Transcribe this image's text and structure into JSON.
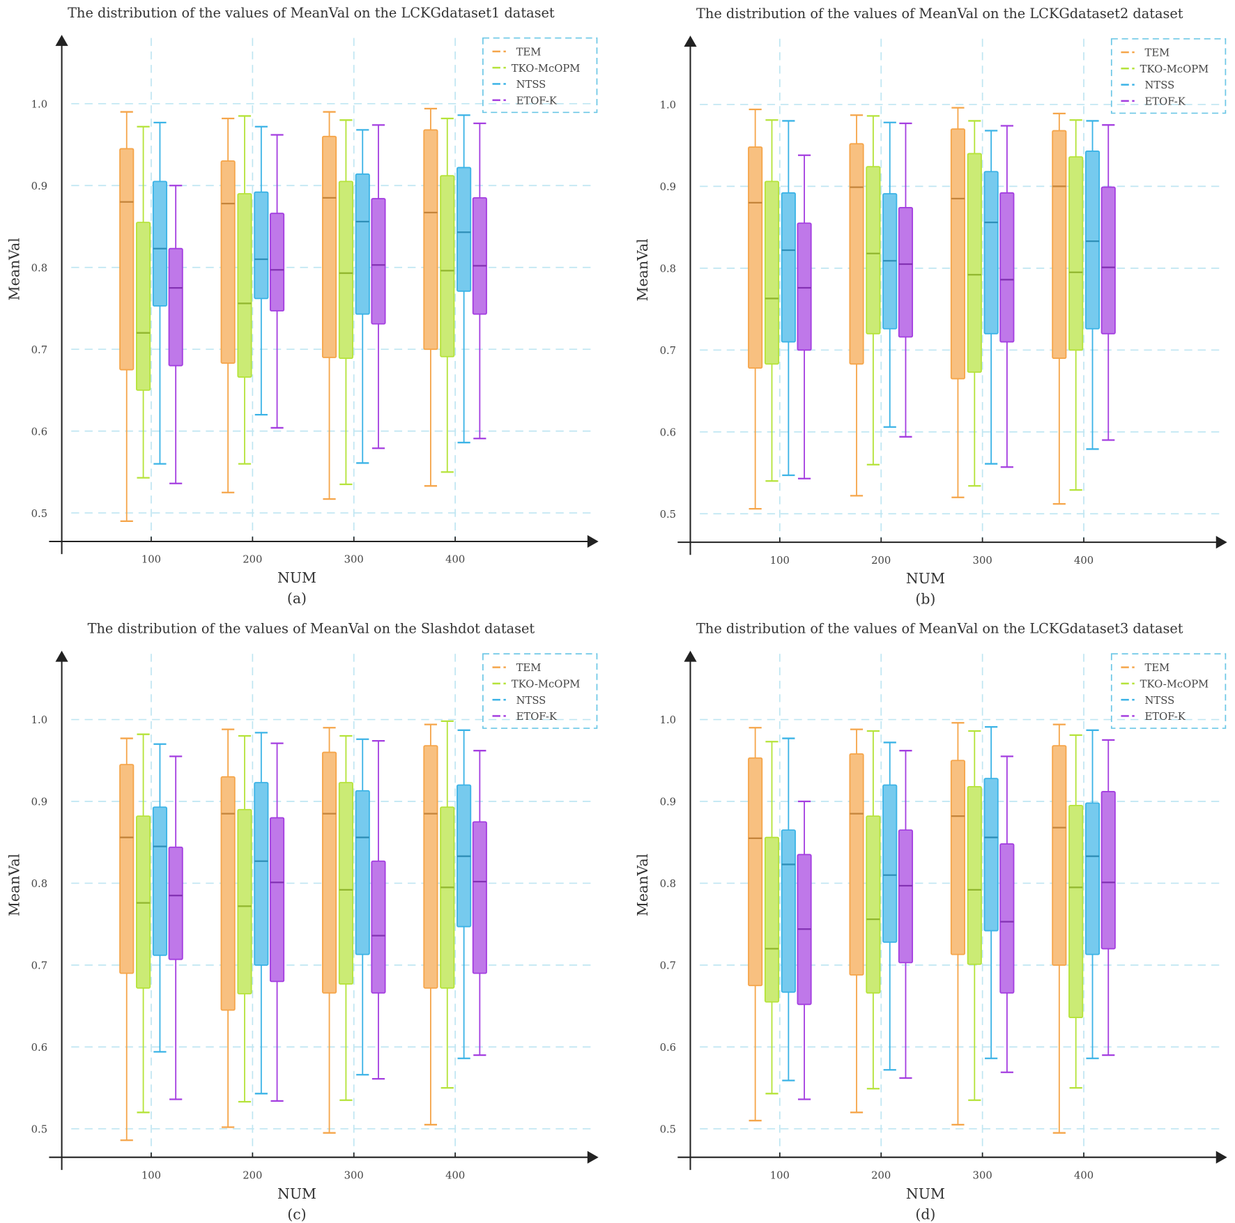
{
  "colors": {
    "TEM": "#f5a54a",
    "TKO-McOPM": "#b5e33a",
    "NTSS": "#3bb3e6",
    "ETOF-K": "#a43ee0",
    "grid": "#bfe6f2",
    "legend_border": "#6cc7e6"
  },
  "chart_data": [
    {
      "type": "box",
      "title": "The distribution of the values of MeanVal on the LCKGdataset1 dataset",
      "xlabel": "NUM",
      "ylabel": "MeanVal",
      "caption": "(a)",
      "categories": [
        "100",
        "200",
        "300",
        "400"
      ],
      "yticks": [
        "0.5",
        "0.6",
        "0.7",
        "0.8",
        "0.9",
        "1.0"
      ],
      "ylim": [
        0.465,
        1.05
      ],
      "grid": true,
      "legend_position": "top-right",
      "series": [
        {
          "name": "TEM",
          "boxes": [
            [
              0.49,
              0.675,
              0.88,
              0.945,
              0.99
            ],
            [
              0.525,
              0.683,
              0.878,
              0.93,
              0.982
            ],
            [
              0.517,
              0.69,
              0.885,
              0.96,
              0.99
            ],
            [
              0.533,
              0.7,
              0.867,
              0.968,
              0.994
            ]
          ]
        },
        {
          "name": "TKO-McOPM",
          "boxes": [
            [
              0.543,
              0.65,
              0.72,
              0.855,
              0.972
            ],
            [
              0.56,
              0.666,
              0.756,
              0.89,
              0.985
            ],
            [
              0.535,
              0.689,
              0.793,
              0.905,
              0.98
            ],
            [
              0.55,
              0.691,
              0.796,
              0.912,
              0.982
            ]
          ]
        },
        {
          "name": "NTSS",
          "boxes": [
            [
              0.56,
              0.753,
              0.823,
              0.905,
              0.977
            ],
            [
              0.62,
              0.762,
              0.81,
              0.892,
              0.972
            ],
            [
              0.561,
              0.743,
              0.856,
              0.914,
              0.968
            ],
            [
              0.586,
              0.771,
              0.843,
              0.922,
              0.986
            ]
          ]
        },
        {
          "name": "ETOF-K",
          "boxes": [
            [
              0.536,
              0.68,
              0.775,
              0.823,
              0.9
            ],
            [
              0.604,
              0.747,
              0.797,
              0.866,
              0.962
            ],
            [
              0.579,
              0.731,
              0.803,
              0.884,
              0.974
            ],
            [
              0.591,
              0.743,
              0.802,
              0.885,
              0.976
            ]
          ]
        }
      ]
    },
    {
      "type": "box",
      "title": "The distribution of the values of MeanVal on the LCKGdataset2 dataset",
      "xlabel": "NUM",
      "ylabel": "MeanVal",
      "caption": "(b)",
      "categories": [
        "100",
        "200",
        "300",
        "400"
      ],
      "yticks": [
        "0.5",
        "0.6",
        "0.7",
        "0.8",
        "0.9",
        "1.0"
      ],
      "ylim": [
        0.465,
        1.05
      ],
      "grid": true,
      "legend_position": "top-right",
      "series": [
        {
          "name": "TEM",
          "boxes": [
            [
              0.506,
              0.678,
              0.88,
              0.948,
              0.994
            ],
            [
              0.522,
              0.683,
              0.899,
              0.952,
              0.987
            ],
            [
              0.52,
              0.665,
              0.885,
              0.97,
              0.996
            ],
            [
              0.512,
              0.69,
              0.9,
              0.968,
              0.989
            ]
          ]
        },
        {
          "name": "TKO-McOPM",
          "boxes": [
            [
              0.54,
              0.683,
              0.763,
              0.906,
              0.981
            ],
            [
              0.56,
              0.72,
              0.818,
              0.924,
              0.986
            ],
            [
              0.534,
              0.673,
              0.792,
              0.94,
              0.98
            ],
            [
              0.529,
              0.7,
              0.795,
              0.936,
              0.981
            ]
          ]
        },
        {
          "name": "NTSS",
          "boxes": [
            [
              0.547,
              0.71,
              0.822,
              0.892,
              0.98
            ],
            [
              0.606,
              0.726,
              0.809,
              0.891,
              0.978
            ],
            [
              0.561,
              0.72,
              0.856,
              0.918,
              0.968
            ],
            [
              0.579,
              0.726,
              0.833,
              0.943,
              0.98
            ]
          ]
        },
        {
          "name": "ETOF-K",
          "boxes": [
            [
              0.543,
              0.7,
              0.776,
              0.855,
              0.938
            ],
            [
              0.594,
              0.716,
              0.805,
              0.874,
              0.977
            ],
            [
              0.557,
              0.71,
              0.786,
              0.892,
              0.974
            ],
            [
              0.59,
              0.72,
              0.801,
              0.899,
              0.975
            ]
          ]
        }
      ]
    },
    {
      "type": "box",
      "title": "The distribution of the values of MeanVal on the Slashdot dataset",
      "xlabel": "NUM",
      "ylabel": "MeanVal",
      "caption": "(c)",
      "categories": [
        "100",
        "200",
        "300",
        "400"
      ],
      "yticks": [
        "0.5",
        "0.6",
        "0.7",
        "0.8",
        "0.9",
        "1.0"
      ],
      "ylim": [
        0.465,
        1.05
      ],
      "grid": true,
      "legend_position": "top-right",
      "series": [
        {
          "name": "TEM",
          "boxes": [
            [
              0.486,
              0.69,
              0.856,
              0.945,
              0.977
            ],
            [
              0.502,
              0.645,
              0.885,
              0.93,
              0.988
            ],
            [
              0.495,
              0.666,
              0.885,
              0.96,
              0.99
            ],
            [
              0.505,
              0.672,
              0.885,
              0.968,
              0.994
            ]
          ]
        },
        {
          "name": "TKO-McOPM",
          "boxes": [
            [
              0.52,
              0.672,
              0.776,
              0.882,
              0.982
            ],
            [
              0.533,
              0.665,
              0.772,
              0.89,
              0.98
            ],
            [
              0.535,
              0.677,
              0.792,
              0.923,
              0.98
            ],
            [
              0.55,
              0.672,
              0.795,
              0.893,
              0.998
            ]
          ]
        },
        {
          "name": "NTSS",
          "boxes": [
            [
              0.594,
              0.712,
              0.845,
              0.893,
              0.97
            ],
            [
              0.543,
              0.7,
              0.827,
              0.923,
              0.984
            ],
            [
              0.566,
              0.713,
              0.856,
              0.913,
              0.976
            ],
            [
              0.586,
              0.747,
              0.833,
              0.92,
              0.987
            ]
          ]
        },
        {
          "name": "ETOF-K",
          "boxes": [
            [
              0.536,
              0.707,
              0.785,
              0.844,
              0.955
            ],
            [
              0.534,
              0.68,
              0.801,
              0.88,
              0.971
            ],
            [
              0.561,
              0.666,
              0.736,
              0.827,
              0.974
            ],
            [
              0.59,
              0.69,
              0.802,
              0.875,
              0.962
            ]
          ]
        }
      ]
    },
    {
      "type": "box",
      "title": "The distribution of the values of MeanVal on the LCKGdataset3 dataset",
      "xlabel": "NUM",
      "ylabel": "MeanVal",
      "caption": "(d)",
      "categories": [
        "100",
        "200",
        "300",
        "400"
      ],
      "yticks": [
        "0.5",
        "0.6",
        "0.7",
        "0.8",
        "0.9",
        "1.0"
      ],
      "ylim": [
        0.465,
        1.05
      ],
      "grid": true,
      "legend_position": "top-right",
      "series": [
        {
          "name": "TEM",
          "boxes": [
            [
              0.51,
              0.675,
              0.855,
              0.953,
              0.99
            ],
            [
              0.52,
              0.688,
              0.885,
              0.958,
              0.988
            ],
            [
              0.505,
              0.713,
              0.882,
              0.95,
              0.996
            ],
            [
              0.495,
              0.7,
              0.868,
              0.968,
              0.994
            ]
          ]
        },
        {
          "name": "TKO-McOPM",
          "boxes": [
            [
              0.543,
              0.655,
              0.72,
              0.856,
              0.973
            ],
            [
              0.549,
              0.666,
              0.756,
              0.882,
              0.986
            ],
            [
              0.535,
              0.701,
              0.792,
              0.918,
              0.986
            ],
            [
              0.55,
              0.636,
              0.795,
              0.895,
              0.981
            ]
          ]
        },
        {
          "name": "NTSS",
          "boxes": [
            [
              0.559,
              0.667,
              0.823,
              0.865,
              0.977
            ],
            [
              0.572,
              0.728,
              0.81,
              0.92,
              0.972
            ],
            [
              0.586,
              0.742,
              0.856,
              0.928,
              0.991
            ],
            [
              0.586,
              0.713,
              0.833,
              0.898,
              0.987
            ]
          ]
        },
        {
          "name": "ETOF-K",
          "boxes": [
            [
              0.536,
              0.652,
              0.744,
              0.835,
              0.9
            ],
            [
              0.562,
              0.703,
              0.797,
              0.865,
              0.962
            ],
            [
              0.569,
              0.666,
              0.753,
              0.848,
              0.955
            ],
            [
              0.59,
              0.72,
              0.801,
              0.912,
              0.975
            ]
          ]
        }
      ]
    }
  ]
}
